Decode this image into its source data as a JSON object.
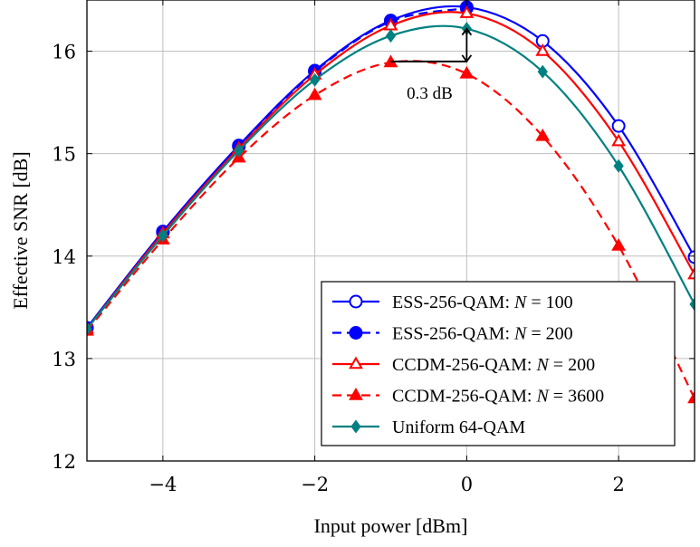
{
  "chart_data": {
    "type": "line",
    "xlabel": "Input power [dBm]",
    "ylabel": "Effective SNR [dB]",
    "xlim": [
      -5,
      3
    ],
    "ylim": [
      12,
      16.5
    ],
    "x_ticks": [
      -4,
      -2,
      0,
      2
    ],
    "x_tick_labels": [
      "−4",
      "−2",
      "0",
      "2"
    ],
    "y_ticks": [
      12,
      13,
      14,
      15,
      16
    ],
    "y_tick_labels": [
      "12",
      "13",
      "14",
      "15",
      "16"
    ],
    "grid": true,
    "legend_position": "bottom-right",
    "series": [
      {
        "name": "ESS-256-QAM: N = 100",
        "name_prefix": "ESS-256-QAM: ",
        "name_math": "N",
        "name_suffix": " = 100",
        "color": "#0000ff",
        "line_style": "solid",
        "marker": "circle-open",
        "x": [
          -5,
          -4,
          -3,
          -2,
          -1,
          0,
          1,
          2,
          3
        ],
        "y": [
          13.3,
          14.24,
          15.08,
          15.81,
          16.3,
          16.43,
          16.1,
          15.27,
          13.99
        ]
      },
      {
        "name": "ESS-256-QAM: N = 200",
        "name_prefix": "ESS-256-QAM: ",
        "name_math": "N",
        "name_suffix": " = 200",
        "color": "#0000ff",
        "line_style": "dashed",
        "marker": "circle-filled",
        "x": [
          -5,
          -4,
          -3,
          -2,
          -1,
          0
        ],
        "y": [
          13.3,
          14.23,
          15.07,
          15.8,
          16.29,
          16.42
        ]
      },
      {
        "name": "CCDM-256-QAM: N = 200",
        "name_prefix": "CCDM-256-QAM: ",
        "name_math": "N",
        "name_suffix": " = 200",
        "color": "#ff0000",
        "line_style": "solid",
        "marker": "triangle-open",
        "x": [
          -5,
          -4,
          -3,
          -2,
          -1,
          0,
          1,
          2,
          3
        ],
        "y": [
          13.29,
          14.22,
          15.05,
          15.77,
          16.25,
          16.37,
          16.0,
          15.12,
          13.82
        ]
      },
      {
        "name": "CCDM-256-QAM: N = 3600",
        "name_prefix": "CCDM-256-QAM: ",
        "name_math": "N",
        "name_suffix": " = 3600",
        "color": "#ff0000",
        "line_style": "dashed",
        "marker": "triangle-filled",
        "x": [
          -5,
          -4,
          -3,
          -2,
          -1,
          0,
          1,
          2,
          3
        ],
        "y": [
          13.27,
          14.16,
          14.96,
          15.57,
          15.89,
          15.78,
          15.17,
          14.1,
          12.61
        ]
      },
      {
        "name": "Uniform 64-QAM",
        "name_prefix": "Uniform 64-QAM",
        "name_math": "",
        "name_suffix": "",
        "color": "#008080",
        "line_style": "solid",
        "marker": "diamond-filled",
        "x": [
          -5,
          -4,
          -3,
          -2,
          -1,
          0,
          1,
          2,
          3
        ],
        "y": [
          13.29,
          14.2,
          15.03,
          15.72,
          16.15,
          16.22,
          15.8,
          14.88,
          13.53
        ]
      }
    ],
    "annotations": [
      {
        "text": "0.3 dB",
        "h_line": {
          "x": [
            -1,
            0
          ],
          "y": 15.9
        },
        "v_arrow": {
          "x": 0,
          "y": [
            15.9,
            16.22
          ]
        }
      }
    ]
  }
}
